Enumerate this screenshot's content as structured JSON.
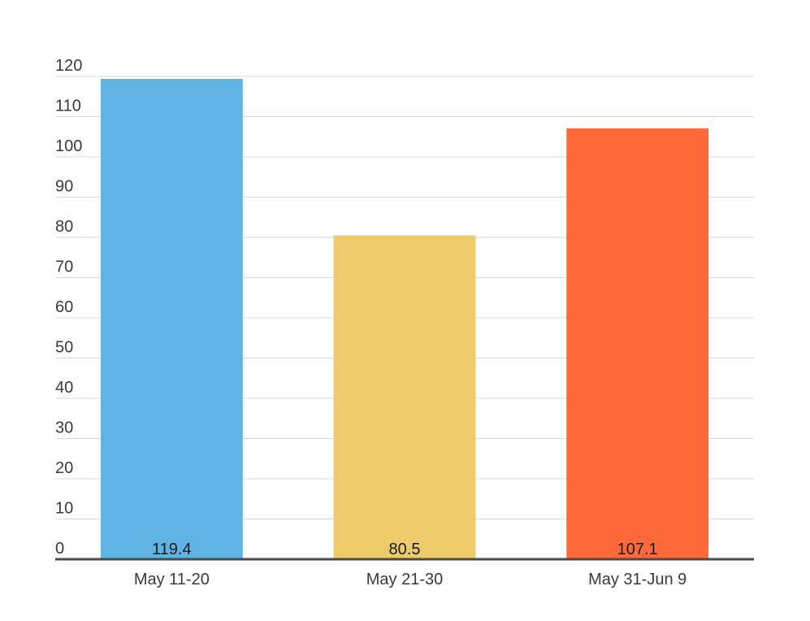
{
  "chart_data": {
    "type": "bar",
    "title": "",
    "xlabel": "",
    "ylabel": "",
    "categories": [
      "May 11-20",
      "May 21-30",
      "May 31-Jun 9"
    ],
    "values": [
      119.4,
      80.5,
      107.1
    ],
    "value_labels": [
      "119.4",
      "80.5",
      "107.1"
    ],
    "colors": [
      "#5FB4E4",
      "#EDCA6A",
      "#FF6A3A"
    ],
    "ylim": [
      0,
      120
    ],
    "yticks": [
      0,
      10,
      20,
      30,
      40,
      50,
      60,
      70,
      80,
      90,
      100,
      110,
      120
    ],
    "ytick_labels": [
      "0",
      "10",
      "20",
      "30",
      "40",
      "50",
      "60",
      "70",
      "80",
      "90",
      "100",
      "110",
      "120"
    ],
    "grid": true,
    "legend": "none",
    "data_label_position": "inside-bottom"
  }
}
